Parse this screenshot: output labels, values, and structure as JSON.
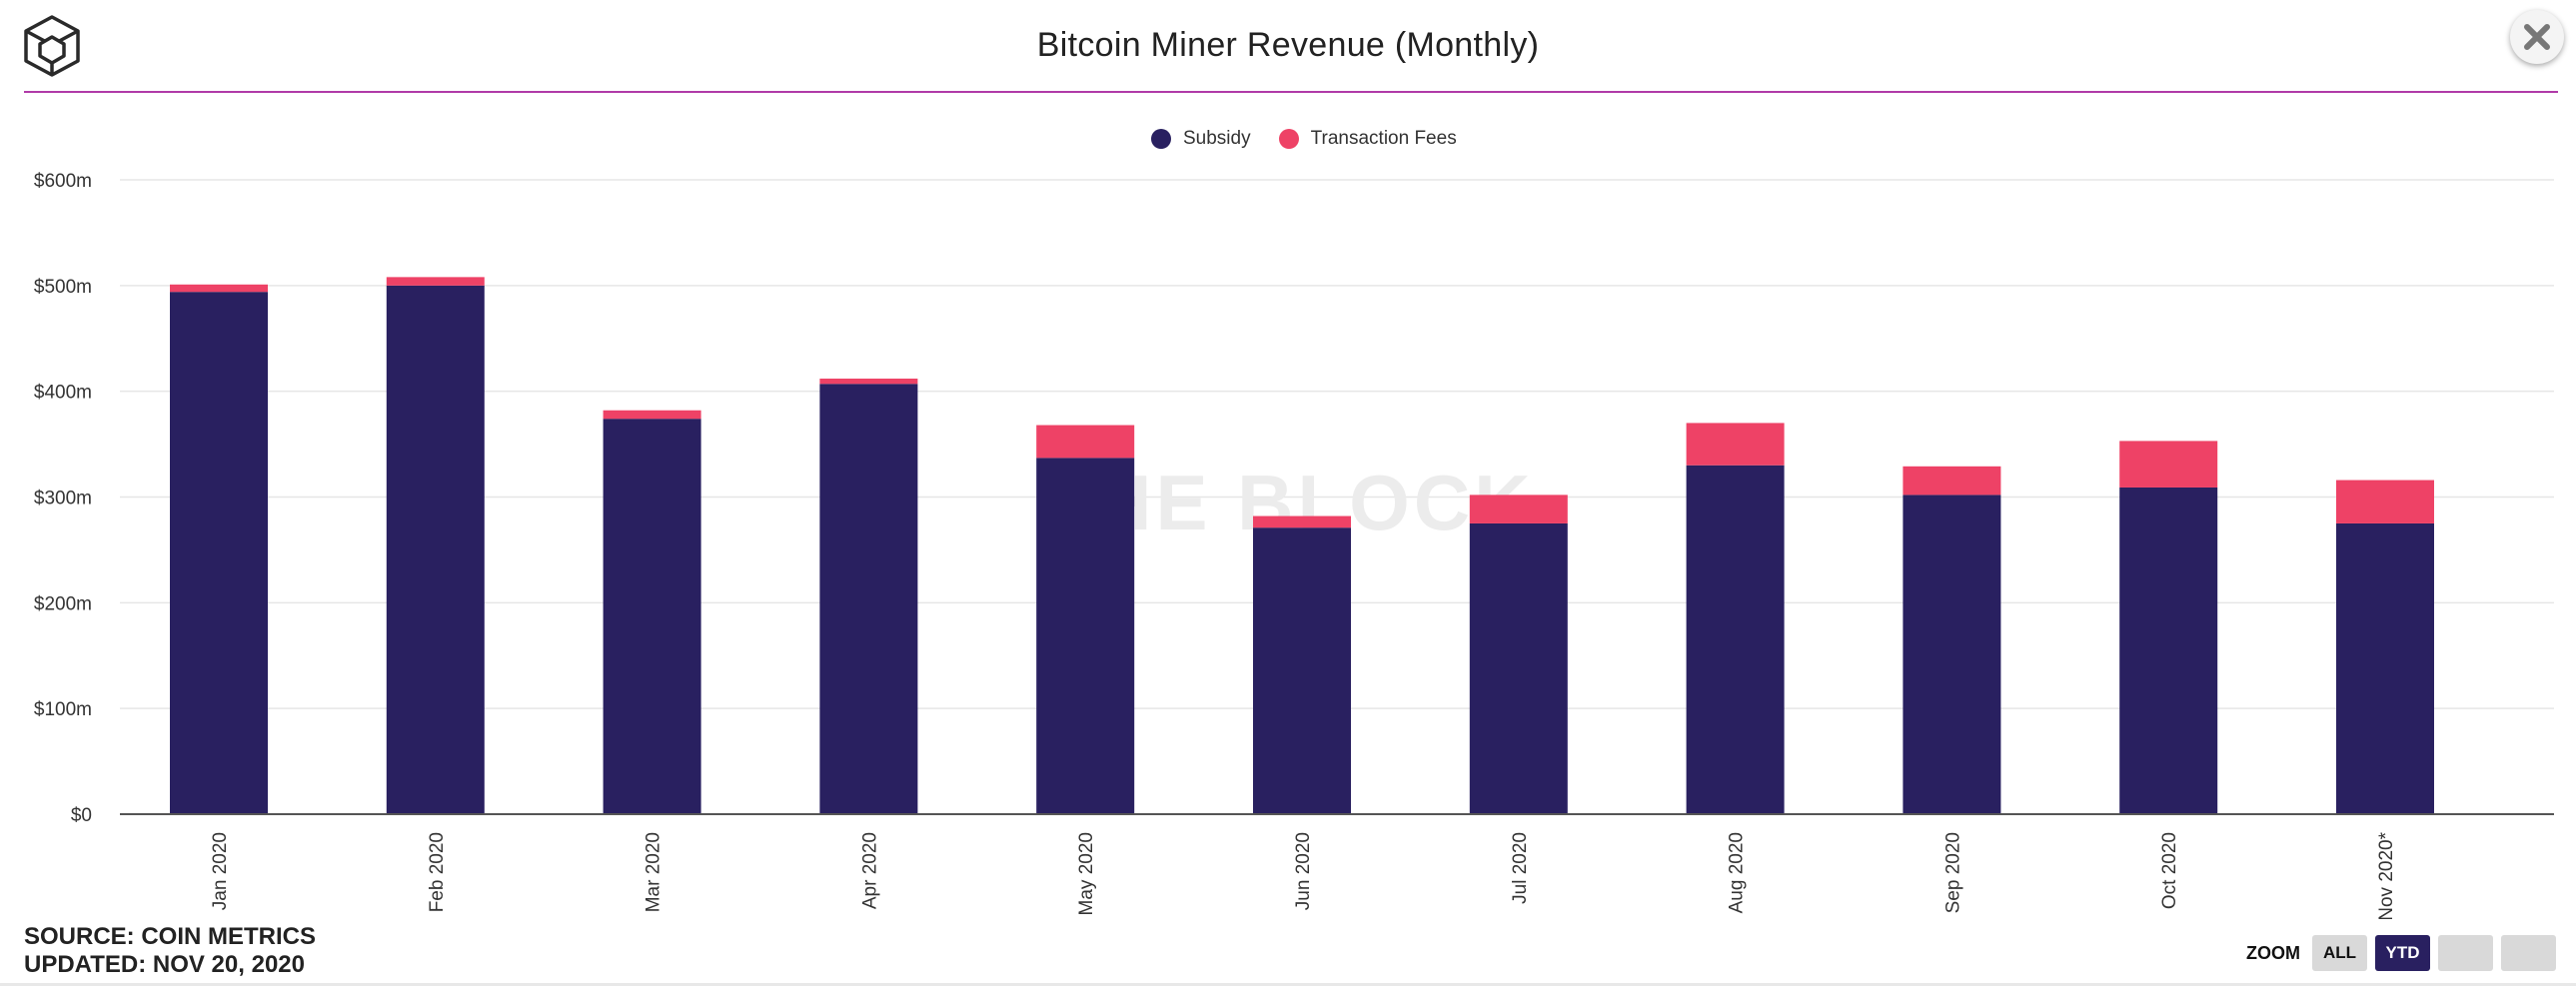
{
  "header": {
    "title": "Bitcoin Miner Revenue (Monthly)"
  },
  "colors": {
    "subsidy": "#292060",
    "fees": "#ee4266",
    "rule": "#b03aa8"
  },
  "icons": {
    "logo": "the-block-cube-logo-icon",
    "close": "close-icon"
  },
  "chart_data": {
    "type": "bar",
    "stacked": true,
    "title": "Bitcoin Miner Revenue (Monthly)",
    "xlabel": "",
    "ylabel": "",
    "ylim": [
      0,
      600
    ],
    "yticks": [
      0,
      100,
      200,
      300,
      400,
      500,
      600
    ],
    "ytick_labels": [
      "$0",
      "$100m",
      "$200m",
      "$300m",
      "$400m",
      "$500m",
      "$600m"
    ],
    "categories": [
      "Jan 2020",
      "Feb 2020",
      "Mar 2020",
      "Apr 2020",
      "May 2020",
      "Jun 2020",
      "Jul 2020",
      "Aug 2020",
      "Sep 2020",
      "Oct 2020",
      "Nov 2020*"
    ],
    "series": [
      {
        "name": "Subsidy",
        "color": "#292060",
        "values": [
          494,
          500,
          374,
          407,
          337,
          271,
          275,
          330,
          302,
          309,
          275
        ]
      },
      {
        "name": "Transaction Fees",
        "color": "#ee4266",
        "values": [
          7,
          8,
          8,
          5,
          31,
          11,
          27,
          40,
          27,
          44,
          41
        ]
      }
    ],
    "legend_position": "top-center",
    "grid": true,
    "watermark": "THE BLOCK"
  },
  "footer": {
    "source": "SOURCE: COIN METRICS",
    "updated": "UPDATED: NOV 20, 2020"
  },
  "zoom": {
    "label": "ZOOM",
    "buttons": [
      "ALL",
      "YTD",
      "",
      ""
    ],
    "active": "YTD"
  }
}
